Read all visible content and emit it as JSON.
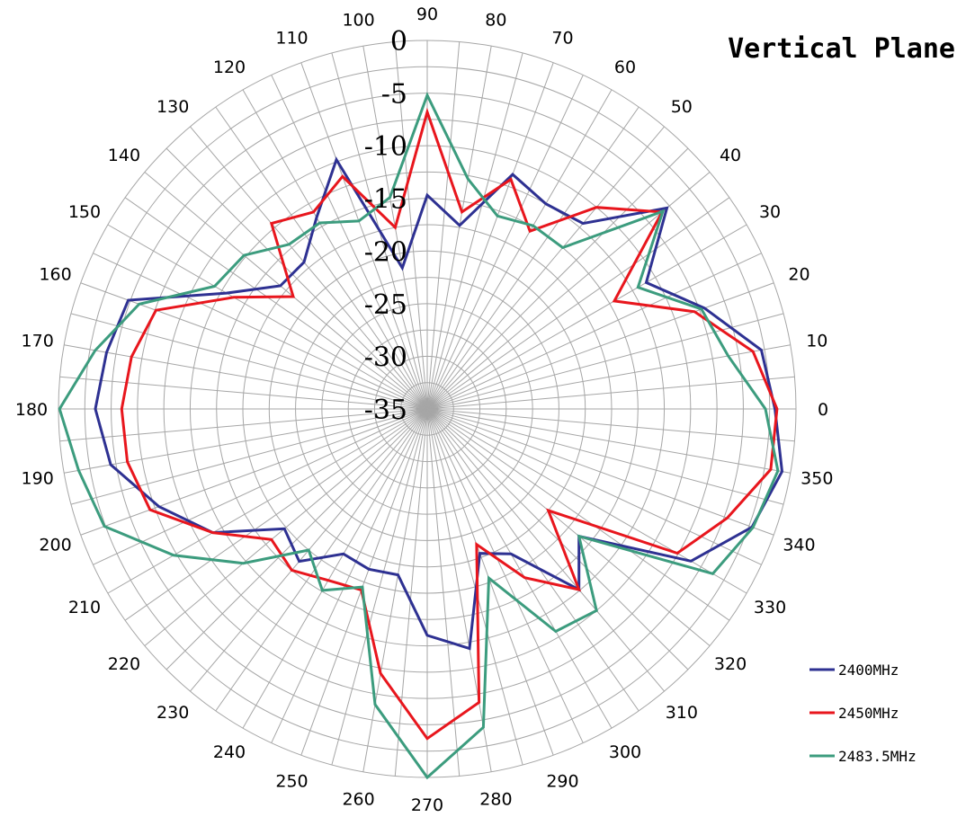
{
  "chart_data": {
    "type": "line",
    "subtype": "polar",
    "title": "Vertical Plane",
    "radial_ticks": [
      0,
      -5,
      -10,
      -15,
      -20,
      -25,
      -30,
      -35
    ],
    "rlim": [
      -35,
      0
    ],
    "angle_ticks": [
      0,
      10,
      20,
      30,
      40,
      50,
      60,
      70,
      80,
      90,
      100,
      110,
      120,
      130,
      140,
      150,
      160,
      170,
      180,
      190,
      200,
      210,
      220,
      230,
      240,
      250,
      260,
      270,
      280,
      290,
      300,
      310,
      320,
      330,
      340,
      350
    ],
    "angle_step": 10,
    "zero_direction": "right",
    "angle_direction": "counterclockwise",
    "grid": true,
    "legend_position": "bottom-right",
    "series": [
      {
        "name": "2400MHz",
        "color": "#2e3192",
        "angles": [
          0,
          10,
          20,
          30,
          40,
          50,
          60,
          70,
          80,
          90,
          100,
          110,
          120,
          130,
          140,
          150,
          160,
          170,
          180,
          190,
          200,
          210,
          220,
          230,
          240,
          250,
          260,
          270,
          280,
          290,
          300,
          310,
          320,
          330,
          340,
          350
        ],
        "values": [
          -2.0,
          -2.8,
          -7.0,
          -11.0,
          -5.3,
          -12.0,
          -12.5,
          -11.3,
          -17.3,
          -14.7,
          -21.4,
          -9.8,
          -14.0,
          -16.8,
          -16.8,
          -13.0,
          -4.8,
          -4.1,
          -3.5,
          -4.5,
          -7.9,
          -11.5,
          -17.3,
          -16.1,
          -19.1,
          -18.8,
          -19.0,
          -13.5,
          -11.9,
          -20.4,
          -19.1,
          -12.6,
          -16.2,
          -6.1,
          -2.2,
          -0.8
        ],
        "note_interp": "blue"
      },
      {
        "name": "2450MHz",
        "color": "#e8161d",
        "angles": [
          0,
          10,
          20,
          30,
          40,
          50,
          60,
          70,
          80,
          90,
          100,
          110,
          120,
          130,
          140,
          150,
          160,
          170,
          180,
          190,
          200,
          210,
          220,
          230,
          240,
          250,
          260,
          270,
          280,
          290,
          300,
          310,
          320,
          330,
          340,
          350
        ],
        "values": [
          -1.8,
          -3.6,
          -8.0,
          -14.5,
          -5.9,
          -10.0,
          -15.5,
          -11.8,
          -16.0,
          -6.8,
          -17.5,
          -11.5,
          -13.4,
          -12.0,
          -18.4,
          -13.8,
          -7.6,
          -6.5,
          -6.0,
          -6.1,
          -7.0,
          -11.5,
          -15.7,
          -15.0,
          -16.2,
          -16.7,
          -9.5,
          -3.7,
          -6.7,
          -21.3,
          -16.5,
          -12.6,
          -20.0,
          -7.6,
          -4.7,
          -1.9
        ],
        "note_interp": "red"
      },
      {
        "name": "2483.5MHz",
        "color": "#3c9c7e",
        "angles": [
          0,
          10,
          20,
          30,
          40,
          50,
          60,
          70,
          80,
          90,
          100,
          110,
          120,
          130,
          140,
          150,
          160,
          170,
          180,
          190,
          200,
          210,
          220,
          230,
          240,
          250,
          260,
          270,
          280,
          290,
          300,
          310,
          320,
          330,
          340,
          350
        ],
        "values": [
          -2.9,
          -6.0,
          -7.3,
          -11.9,
          -5.8,
          -15.0,
          -14.9,
          -15.5,
          -12.8,
          -5.2,
          -14.6,
          -16.0,
          -14.6,
          -14.6,
          -12.3,
          -11.7,
          -5.9,
          -3.0,
          -0.1,
          -1.4,
          -2.4,
          -7.2,
          -12.2,
          -17.5,
          -15.1,
          -17.0,
          -6.5,
          0.0,
          -4.3,
          -17.9,
          -10.6,
          -10.0,
          -16.2,
          -3.7,
          -2.1,
          -1.2
        ],
        "note_interp": "green"
      }
    ]
  }
}
